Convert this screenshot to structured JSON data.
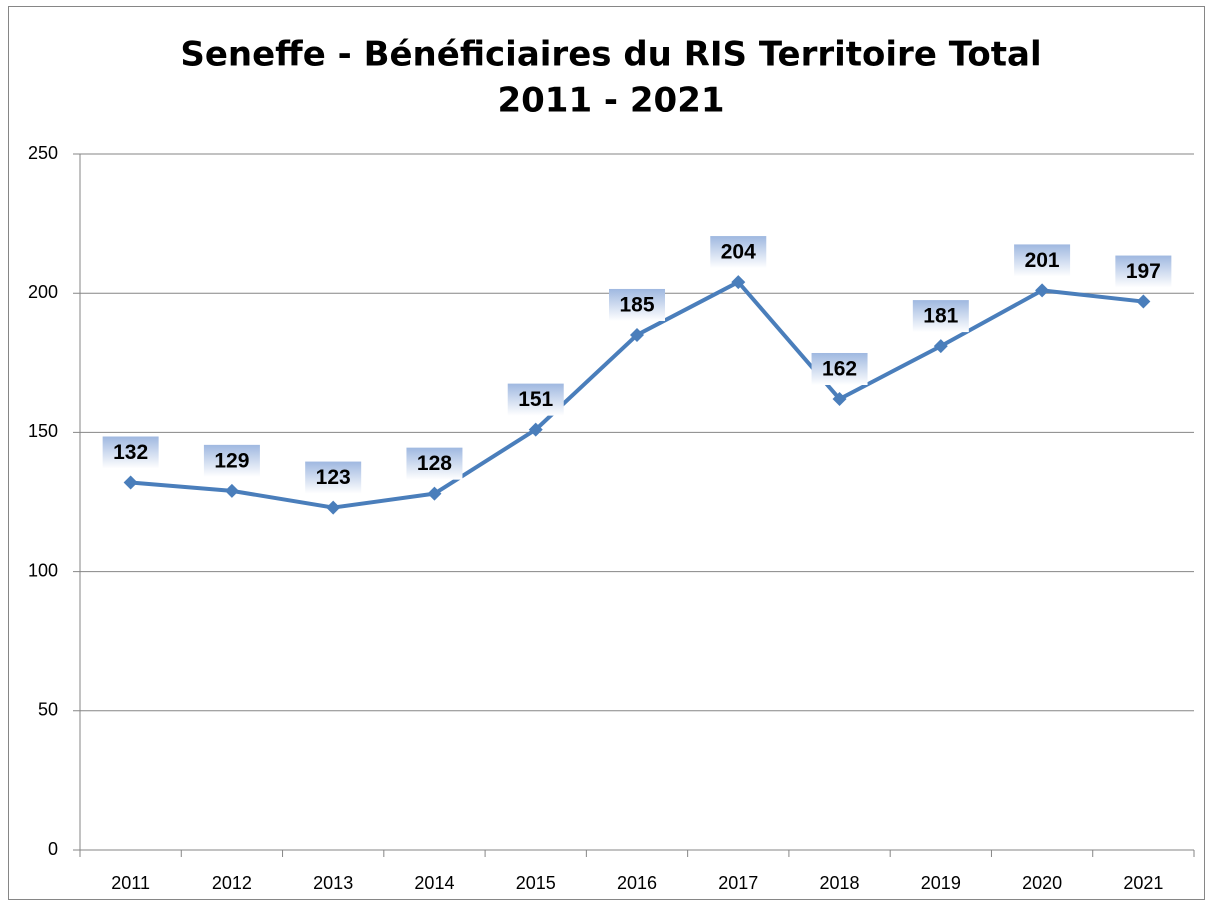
{
  "chart_data": {
    "type": "line",
    "title": "Seneffe - Bénéficiaires du RIS Territoire Total",
    "subtitle": "2011 - 2021",
    "categories": [
      "2011",
      "2012",
      "2013",
      "2014",
      "2015",
      "2016",
      "2017",
      "2018",
      "2019",
      "2020",
      "2021"
    ],
    "values": [
      132,
      129,
      123,
      128,
      151,
      185,
      204,
      162,
      181,
      201,
      197
    ],
    "color": "#4a7ebb",
    "ylim": [
      0,
      250
    ],
    "yticks": [
      0,
      50,
      100,
      150,
      200,
      250
    ],
    "grid": true
  }
}
